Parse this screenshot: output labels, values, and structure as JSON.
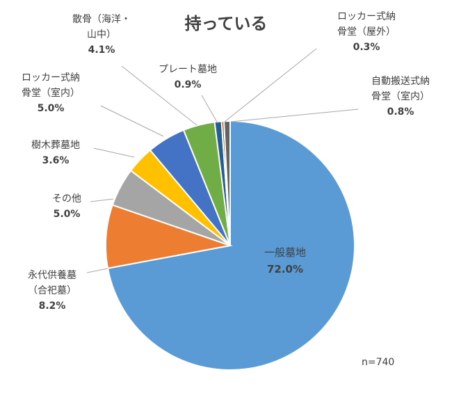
{
  "chart_data": {
    "type": "pie",
    "title": "持っている",
    "note": "n=740",
    "slices": [
      {
        "name": "一般墓地",
        "lines": [
          "一般墓地"
        ],
        "value": 72.0,
        "display": "72.0%",
        "color": "#5b9bd5"
      },
      {
        "name": "永代供養墓（合祀墓）",
        "lines": [
          "永代供養墓",
          "（合祀墓）"
        ],
        "value": 8.2,
        "display": "8.2%",
        "color": "#ed7d31"
      },
      {
        "name": "その他",
        "lines": [
          "その他"
        ],
        "value": 5.0,
        "display": "5.0%",
        "color": "#a5a5a5"
      },
      {
        "name": "樹木葬墓地",
        "lines": [
          "樹木葬墓地"
        ],
        "value": 3.6,
        "display": "3.6%",
        "color": "#ffc000"
      },
      {
        "name": "ロッカー式納骨堂（室内）",
        "lines": [
          "ロッカー式納",
          "骨堂（室内）"
        ],
        "value": 5.0,
        "display": "5.0%",
        "color": "#4472c4"
      },
      {
        "name": "散骨（海洋・山中）",
        "lines": [
          "散骨（海洋・",
          "山中）"
        ],
        "value": 4.1,
        "display": "4.1%",
        "color": "#70ad47"
      },
      {
        "name": "プレート墓地",
        "lines": [
          "プレート墓地"
        ],
        "value": 0.9,
        "display": "0.9%",
        "color": "#255e91"
      },
      {
        "name": "ロッカー式納骨堂（屋外）",
        "lines": [
          "ロッカー式納",
          "骨堂（屋外）"
        ],
        "value": 0.3,
        "display": "0.3%",
        "color": "#9e480e"
      },
      {
        "name": "自動搬送式納骨堂（室内）",
        "lines": [
          "自動搬送式納",
          "骨堂（室内）"
        ],
        "value": 0.8,
        "display": "0.8%",
        "color": "#636363"
      }
    ]
  }
}
